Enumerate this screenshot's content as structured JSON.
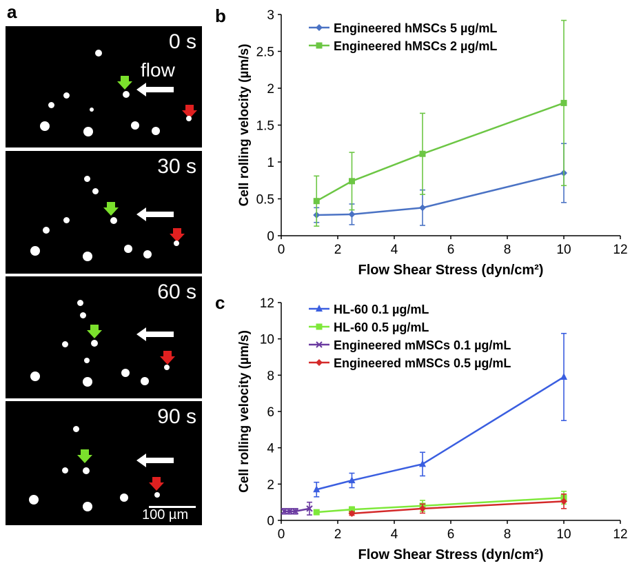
{
  "panel_letters": {
    "a": "a",
    "b": "b",
    "c": "c"
  },
  "micrograph": {
    "frames": [
      {
        "time": "0 s"
      },
      {
        "time": "30 s"
      },
      {
        "time": "60 s"
      },
      {
        "time": "90 s"
      }
    ],
    "flow_label": "flow",
    "scale_bar_label": "100 µm",
    "colors": {
      "green_arrow": "#7be02c",
      "red_arrow": "#e02020",
      "background": "#000000"
    }
  },
  "chart_data": [
    {
      "id": "b",
      "type": "line",
      "xlabel": "Flow Shear Stress (dyn/cm²)",
      "ylabel": "Cell rolling velocity (µm/s)",
      "xlim": [
        0,
        12
      ],
      "ylim": [
        0,
        3
      ],
      "xticks": [
        0,
        2,
        4,
        6,
        8,
        10,
        12
      ],
      "yticks": [
        0,
        0.5,
        1,
        1.5,
        2,
        2.5,
        3
      ],
      "ytick_labels": [
        "0",
        "0.5",
        "1",
        "1.5",
        "2",
        "2.5",
        "3"
      ],
      "grid": false,
      "legend_position": "top-left",
      "series": [
        {
          "name": "Engineered hMSCs 5 µg/mL",
          "color": "#4a72c4",
          "marker": "diamond",
          "x": [
            1.25,
            2.5,
            5,
            10
          ],
          "y": [
            0.28,
            0.29,
            0.38,
            0.85
          ],
          "err": [
            0.1,
            0.14,
            0.24,
            0.4
          ]
        },
        {
          "name": "Engineered hMSCs 2 µg/mL",
          "color": "#6cc644",
          "marker": "square",
          "x": [
            1.25,
            2.5,
            5,
            10
          ],
          "y": [
            0.47,
            0.74,
            1.11,
            1.8
          ],
          "err": [
            0.34,
            0.39,
            0.55,
            1.12
          ]
        }
      ]
    },
    {
      "id": "c",
      "type": "line",
      "xlabel": "Flow Shear Stress (dyn/cm²)",
      "ylabel": "Cell rolling velocity (µm/s)",
      "xlim": [
        0,
        12
      ],
      "ylim": [
        0,
        12
      ],
      "xticks": [
        0,
        2,
        4,
        6,
        8,
        10,
        12
      ],
      "yticks": [
        0,
        2,
        4,
        6,
        8,
        10,
        12
      ],
      "ytick_labels": [
        "0",
        "2",
        "4",
        "6",
        "8",
        "10",
        "12"
      ],
      "grid": false,
      "legend_position": "top-left",
      "series": [
        {
          "name": "HL-60 0.1 µg/mL",
          "color": "#3a5ee0",
          "marker": "triangle",
          "x": [
            1.25,
            2.5,
            5,
            10
          ],
          "y": [
            1.7,
            2.2,
            3.1,
            7.9
          ],
          "err": [
            0.4,
            0.4,
            0.65,
            2.4
          ]
        },
        {
          "name": "HL-60 0.5 µg/mL",
          "color": "#7ee83a",
          "marker": "square",
          "x": [
            1.25,
            2.5,
            5,
            10
          ],
          "y": [
            0.45,
            0.6,
            0.8,
            1.25
          ],
          "err": [
            0.1,
            0.15,
            0.3,
            0.35
          ]
        },
        {
          "name": "Engineered mMSCs 0.1 µg/mL",
          "color": "#6a3aa0",
          "marker": "x",
          "x": [
            0.1,
            0.3,
            0.5,
            1.0
          ],
          "y": [
            0.5,
            0.5,
            0.5,
            0.65
          ],
          "err": [
            0.15,
            0.15,
            0.15,
            0.35
          ]
        },
        {
          "name": "Engineered mMSCs 0.5 µg/mL",
          "color": "#d42a2a",
          "marker": "diamond",
          "x": [
            2.5,
            5,
            10
          ],
          "y": [
            0.38,
            0.65,
            1.05
          ],
          "err": [
            0.1,
            0.25,
            0.4
          ]
        }
      ]
    }
  ]
}
